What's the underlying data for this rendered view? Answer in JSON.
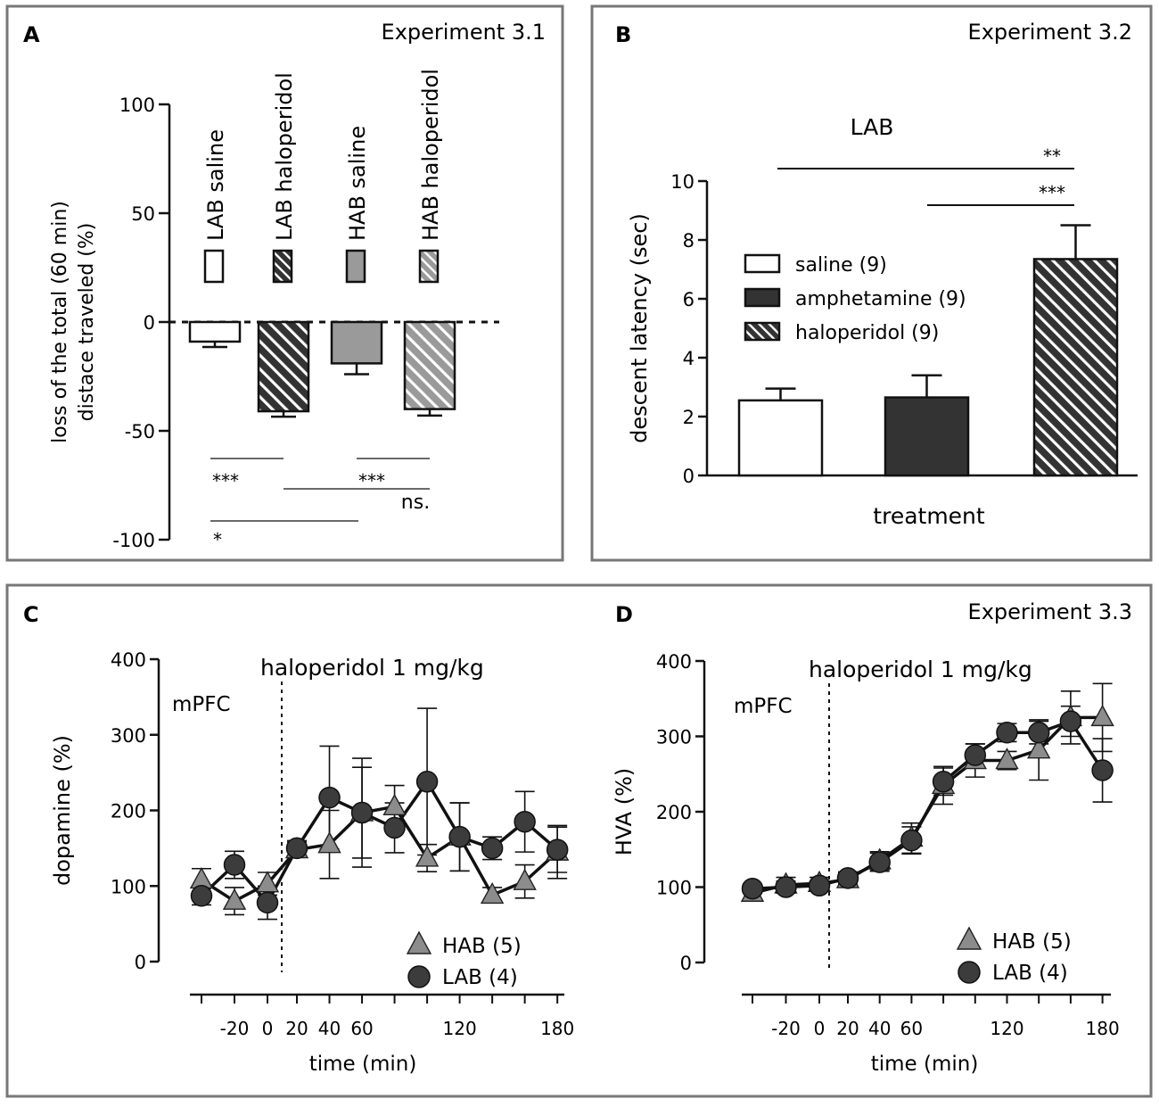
{
  "panels": {
    "A": {
      "letter": "A",
      "experiment": "Experiment 3.1"
    },
    "B": {
      "letter": "B",
      "experiment": "Experiment 3.2"
    },
    "C": {
      "letter": "C"
    },
    "D": {
      "letter": "D",
      "experiment": "Experiment 3.3"
    }
  },
  "colors": {
    "border": "#777777",
    "dark": "#333333",
    "mid": "#9a9a9a",
    "light": "#b8b8b8",
    "white": "#ffffff"
  },
  "chart_data": [
    {
      "id": "A",
      "type": "bar",
      "ylabel_lines": [
        "loss of the total  (60 min)",
        "distace traveled (%)"
      ],
      "ylim": [
        -100,
        100
      ],
      "yticks": [
        100,
        50,
        0,
        -50,
        -100
      ],
      "yticklabels": [
        "100",
        "50",
        "0",
        "-50",
        "-100"
      ],
      "categories": [
        "LAB saline",
        "LAB haloperidol",
        "HAB saline",
        "HAB haloperidol"
      ],
      "values": [
        -9,
        -41,
        -19,
        -40
      ],
      "errors": [
        2.5,
        2.5,
        5,
        3
      ],
      "fills": [
        "white",
        "dark-hatch",
        "mid",
        "light-hatch"
      ],
      "significance": [
        {
          "label": "***",
          "from": 0,
          "to": 1,
          "level": -63,
          "text_level": -72
        },
        {
          "label": "***",
          "from": 1,
          "to": 3,
          "level": -77,
          "text_level": -72
        },
        {
          "label": "",
          "from": 2,
          "to": 3,
          "level": -63
        },
        {
          "label": "ns.",
          "from": 3,
          "to": 3,
          "level": -77,
          "text_level": -83
        },
        {
          "label": "*",
          "from": 0,
          "to": 2,
          "level": -92,
          "text_level": -102
        }
      ]
    },
    {
      "id": "B",
      "type": "bar",
      "group": "LAB",
      "xlabel": "treatment",
      "ylabel": "descent latency  (sec)",
      "ylim": [
        0,
        10
      ],
      "yticks": [
        0,
        2,
        4,
        6,
        8,
        10
      ],
      "categories": [
        "saline (9)",
        "amphetamine (9)",
        "haloperidol (9)"
      ],
      "values": [
        2.55,
        2.65,
        7.35
      ],
      "errors": [
        0.4,
        0.75,
        1.15
      ],
      "fills": [
        "white",
        "dark",
        "dark-hatch"
      ],
      "significance": [
        {
          "label": "**",
          "from": 0,
          "to": 2,
          "level": 10.4
        },
        {
          "label": "***",
          "from": 1,
          "to": 2,
          "level": 9.1
        }
      ]
    },
    {
      "id": "C",
      "type": "line",
      "annotation": "haloperidol 1 mg/kg",
      "region": "mPFC",
      "xlabel": "time (min)",
      "ylabel": "dopamine (%)",
      "ylim": [
        0,
        400
      ],
      "yticks": [
        0,
        100,
        200,
        300,
        400
      ],
      "xticks": [
        -20,
        0,
        20,
        40,
        60,
        120,
        180
      ],
      "injection_x": 10,
      "series": [
        {
          "name": "HAB (5)",
          "marker": "triangle",
          "x": [
            -40,
            -20,
            0,
            20,
            40,
            60,
            80,
            100,
            120,
            140,
            160,
            180
          ],
          "y": [
            108,
            80,
            103,
            148,
            155,
            197,
            205,
            137,
            165,
            88,
            106,
            145
          ],
          "err": [
            15,
            18,
            15,
            10,
            45,
            60,
            28,
            18,
            45,
            10,
            22,
            35
          ]
        },
        {
          "name": "LAB (4)",
          "marker": "circle",
          "x": [
            -40,
            -20,
            0,
            20,
            40,
            60,
            80,
            100,
            120,
            140,
            160,
            180
          ],
          "y": [
            87,
            128,
            78,
            150,
            217,
            197,
            177,
            238,
            165,
            150,
            185,
            148
          ],
          "err": [
            12,
            18,
            22,
            10,
            68,
            72,
            33,
            97,
            45,
            15,
            40,
            30
          ]
        }
      ]
    },
    {
      "id": "D",
      "type": "line",
      "annotation": "haloperidol 1 mg/kg",
      "region": "mPFC",
      "xlabel": "time (min)",
      "ylabel": "HVA (%)",
      "ylim": [
        0,
        400
      ],
      "yticks": [
        0,
        100,
        200,
        300,
        400
      ],
      "xticks": [
        -20,
        0,
        20,
        40,
        60,
        120,
        180
      ],
      "injection_x": 10,
      "series": [
        {
          "name": "HAB (5)",
          "marker": "triangle",
          "x": [
            -40,
            -20,
            0,
            20,
            40,
            60,
            80,
            100,
            120,
            140,
            160,
            180
          ],
          "y": [
            92,
            103,
            105,
            110,
            135,
            165,
            235,
            268,
            268,
            282,
            325,
            325
          ],
          "err": [
            8,
            10,
            8,
            10,
            12,
            20,
            25,
            22,
            12,
            40,
            35,
            45
          ]
        },
        {
          "name": "LAB (4)",
          "marker": "circle",
          "x": [
            -40,
            -20,
            0,
            20,
            40,
            60,
            80,
            100,
            120,
            140,
            160,
            180
          ],
          "y": [
            98,
            100,
            102,
            112,
            133,
            162,
            240,
            275,
            305,
            305,
            320,
            255
          ],
          "err": [
            6,
            8,
            6,
            8,
            12,
            18,
            18,
            15,
            12,
            15,
            20,
            42
          ]
        }
      ]
    }
  ]
}
